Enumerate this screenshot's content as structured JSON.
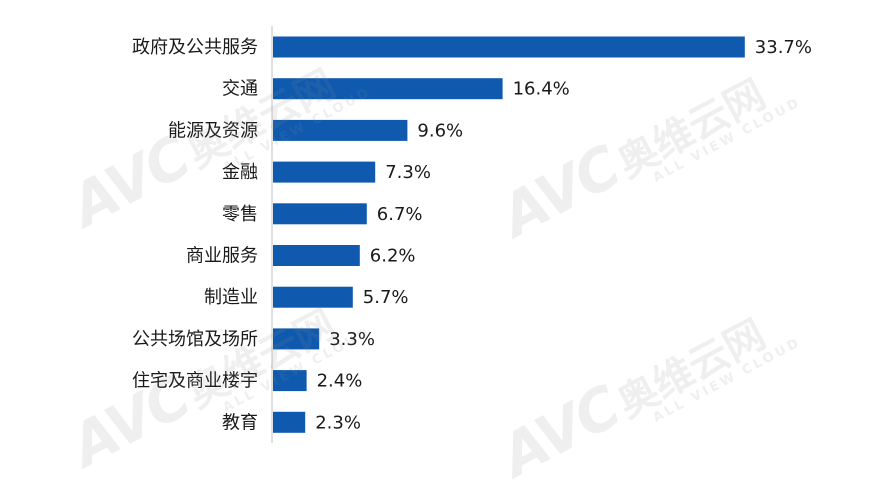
{
  "watermark": {
    "logo_text": "AVC",
    "brand_cn": "奥维云网",
    "brand_en": "ALL VIEW CLOUD"
  },
  "chart_data": {
    "type": "bar",
    "orientation": "horizontal",
    "categories": [
      "政府及公共服务",
      "交通",
      "能源及资源",
      "金融",
      "零售",
      "商业服务",
      "制造业",
      "公共场馆及场所",
      "住宅及商业楼宇",
      "教育"
    ],
    "values": [
      33.7,
      16.4,
      9.6,
      7.3,
      6.7,
      6.2,
      5.7,
      3.3,
      2.4,
      2.3
    ],
    "value_labels": [
      "33.7%",
      "16.4%",
      "9.6%",
      "7.3%",
      "6.7%",
      "6.2%",
      "5.7%",
      "3.3%",
      "2.4%",
      "2.3%"
    ],
    "title": "",
    "xlabel": "",
    "ylabel": "",
    "xlim": [
      0,
      35
    ],
    "grid": false,
    "legend": "none",
    "bar_color": "#0F5AAF"
  }
}
